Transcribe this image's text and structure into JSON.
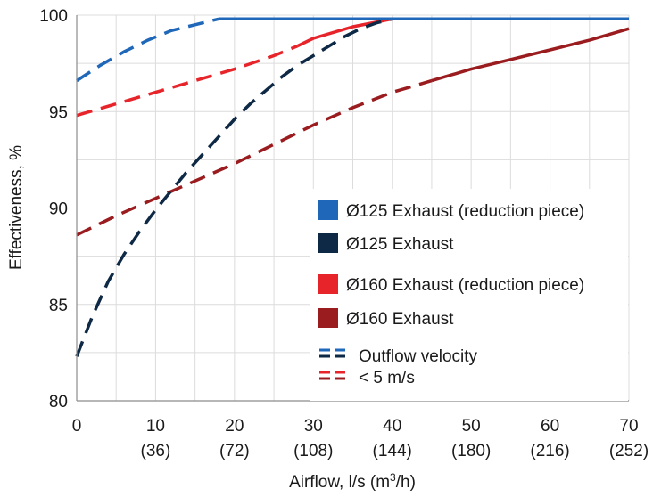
{
  "chart_data": {
    "type": "line",
    "title": "",
    "xlabel": "Airflow, l/s (m³/h)",
    "ylabel": "Effectiveness, %",
    "xlim": [
      0,
      70
    ],
    "ylim": [
      80,
      100
    ],
    "grid": true,
    "legend_position": "right-inside",
    "x_ticks": [
      {
        "value": 0,
        "label": "0",
        "sub": ""
      },
      {
        "value": 10,
        "label": "10",
        "sub": "(36)"
      },
      {
        "value": 20,
        "label": "20",
        "sub": "(72)"
      },
      {
        "value": 30,
        "label": "30",
        "sub": "(108)"
      },
      {
        "value": 40,
        "label": "40",
        "sub": "(144)"
      },
      {
        "value": 50,
        "label": "50",
        "sub": "(180)"
      },
      {
        "value": 60,
        "label": "60",
        "sub": "(216)"
      },
      {
        "value": 70,
        "label": "70",
        "sub": "(252)"
      }
    ],
    "y_ticks": [
      {
        "value": 80,
        "label": "80"
      },
      {
        "value": 85,
        "label": "85"
      },
      {
        "value": 90,
        "label": "90"
      },
      {
        "value": 95,
        "label": "95"
      },
      {
        "value": 100,
        "label": "100"
      }
    ],
    "series": [
      {
        "name": "Ø125 Exhaust (reduction piece)",
        "color": "#1f67b9",
        "dashed_until_x": 18,
        "points": [
          [
            0,
            96.6
          ],
          [
            3,
            97.4
          ],
          [
            6,
            98.1
          ],
          [
            9,
            98.7
          ],
          [
            12,
            99.2
          ],
          [
            15,
            99.5
          ],
          [
            18,
            99.8
          ],
          [
            20,
            99.8
          ],
          [
            30,
            99.8
          ],
          [
            40,
            99.8
          ],
          [
            50,
            99.8
          ],
          [
            60,
            99.8
          ],
          [
            70,
            99.8
          ]
        ]
      },
      {
        "name": "Ø125 Exhaust",
        "color": "#0e2945",
        "dashed_until_x": 42,
        "points": [
          [
            0,
            82.3
          ],
          [
            2,
            84.4
          ],
          [
            4,
            86.2
          ],
          [
            6,
            87.6
          ],
          [
            8,
            88.8
          ],
          [
            10,
            89.9
          ],
          [
            12,
            90.9
          ],
          [
            14,
            91.9
          ],
          [
            16,
            92.8
          ],
          [
            18,
            93.7
          ],
          [
            20,
            94.6
          ],
          [
            22,
            95.4
          ],
          [
            24,
            96.1
          ],
          [
            26,
            96.8
          ],
          [
            28,
            97.4
          ],
          [
            30,
            97.9
          ],
          [
            32,
            98.4
          ],
          [
            34,
            98.9
          ],
          [
            36,
            99.3
          ],
          [
            38,
            99.6
          ],
          [
            40,
            99.8
          ],
          [
            42,
            99.8
          ],
          [
            50,
            99.8
          ],
          [
            60,
            99.8
          ],
          [
            70,
            99.8
          ]
        ]
      },
      {
        "name": "Ø160 Exhaust (reduction piece)",
        "color": "#e8242b",
        "dashed_until_x": 28,
        "points": [
          [
            0,
            94.8
          ],
          [
            5,
            95.4
          ],
          [
            10,
            96.0
          ],
          [
            15,
            96.6
          ],
          [
            20,
            97.2
          ],
          [
            25,
            97.9
          ],
          [
            28,
            98.4
          ],
          [
            30,
            98.8
          ],
          [
            35,
            99.4
          ],
          [
            40,
            99.8
          ],
          [
            45,
            99.8
          ],
          [
            50,
            99.8
          ],
          [
            60,
            99.8
          ],
          [
            70,
            99.8
          ]
        ]
      },
      {
        "name": "Ø160 Exhaust",
        "color": "#9a1c1f",
        "dashed_until_x": 45,
        "points": [
          [
            0,
            88.6
          ],
          [
            5,
            89.6
          ],
          [
            10,
            90.5
          ],
          [
            15,
            91.4
          ],
          [
            20,
            92.3
          ],
          [
            25,
            93.3
          ],
          [
            30,
            94.3
          ],
          [
            35,
            95.2
          ],
          [
            40,
            96.0
          ],
          [
            45,
            96.6
          ],
          [
            50,
            97.2
          ],
          [
            55,
            97.7
          ],
          [
            60,
            98.2
          ],
          [
            65,
            98.7
          ],
          [
            70,
            99.3
          ]
        ]
      }
    ],
    "annotation": {
      "lines": [
        "Outflow velocity",
        "< 5 m/s"
      ],
      "colors": [
        "#1f67b9",
        "#0e2945",
        "#e8242b",
        "#9a1c1f"
      ]
    }
  }
}
